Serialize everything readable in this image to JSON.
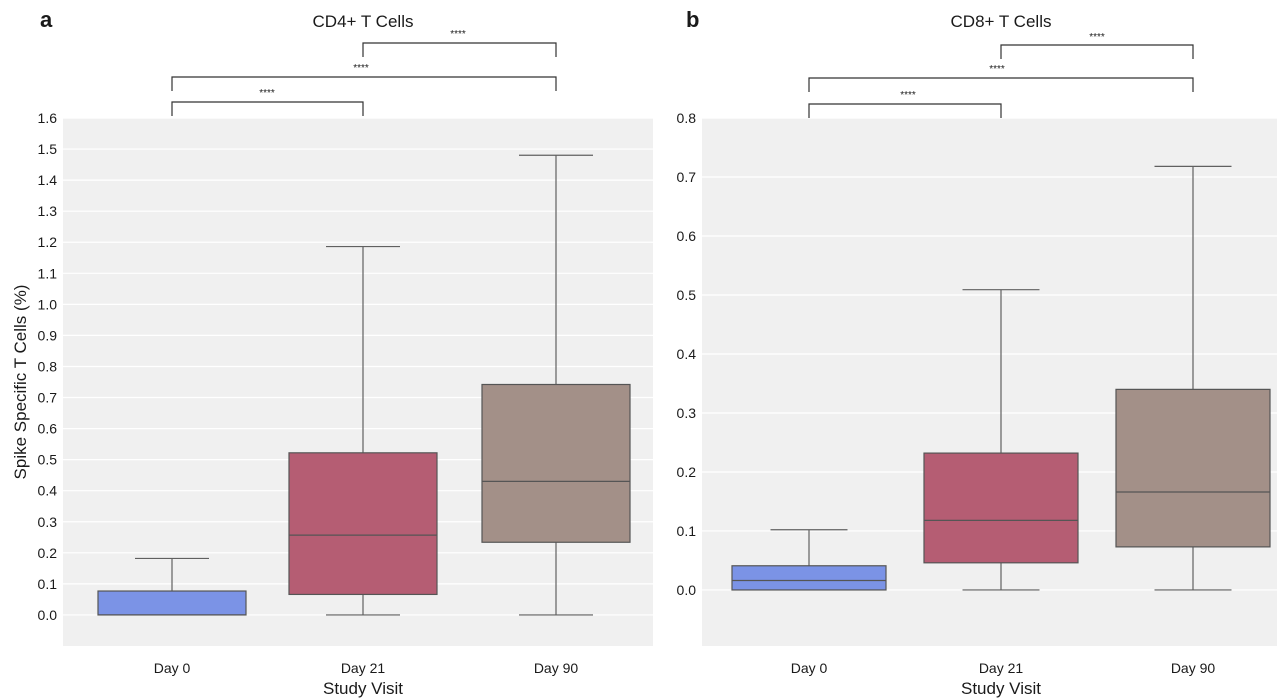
{
  "chart_data": [
    {
      "type": "box",
      "panel_label": "a",
      "title": "CD4+ T Cells",
      "xlabel": "Study Visit",
      "ylabel": "Spike Specific T Cells (%)",
      "ylim": [
        -0.1,
        1.6
      ],
      "yticks": [
        "0.0",
        "0.1",
        "0.2",
        "0.3",
        "0.4",
        "0.5",
        "0.6",
        "0.7",
        "0.8",
        "0.9",
        "1.0",
        "1.1",
        "1.2",
        "1.3",
        "1.4",
        "1.5",
        "1.6"
      ],
      "grid": true,
      "categories": [
        "Day 0",
        "Day 21",
        "Day 90"
      ],
      "boxes": [
        {
          "category": "Day 0",
          "min": 0.0,
          "q1": 0.0,
          "median": 0.0,
          "q3": 0.077,
          "max": 0.182,
          "color": "#7b93e6"
        },
        {
          "category": "Day 21",
          "min": 0.0,
          "q1": 0.066,
          "median": 0.257,
          "q3": 0.522,
          "max": 1.186,
          "color": "#b55d73"
        },
        {
          "category": "Day 90",
          "min": 0.0,
          "q1": 0.234,
          "median": 0.43,
          "q3": 0.742,
          "max": 1.48,
          "color": "#a39088"
        }
      ],
      "significance": [
        {
          "from": "Day 0",
          "to": "Day 21",
          "label": "****"
        },
        {
          "from": "Day 0",
          "to": "Day 90",
          "label": "****"
        },
        {
          "from": "Day 21",
          "to": "Day 90",
          "label": "****"
        }
      ]
    },
    {
      "type": "box",
      "panel_label": "b",
      "title": "CD8+ T Cells",
      "xlabel": "Study Visit",
      "ylabel": "",
      "ylim": [
        -0.095,
        0.8
      ],
      "yticks": [
        "0.0",
        "0.1",
        "0.2",
        "0.3",
        "0.4",
        "0.5",
        "0.6",
        "0.7",
        "0.8"
      ],
      "grid": true,
      "categories": [
        "Day 0",
        "Day 21",
        "Day 90"
      ],
      "boxes": [
        {
          "category": "Day 0",
          "min": 0.0,
          "q1": 0.0,
          "median": 0.016,
          "q3": 0.041,
          "max": 0.102,
          "color": "#7b93e6"
        },
        {
          "category": "Day 21",
          "min": 0.0,
          "q1": 0.046,
          "median": 0.118,
          "q3": 0.232,
          "max": 0.509,
          "color": "#b55d73"
        },
        {
          "category": "Day 90",
          "min": 0.0,
          "q1": 0.073,
          "median": 0.166,
          "q3": 0.34,
          "max": 0.718,
          "color": "#a39088"
        }
      ],
      "significance": [
        {
          "from": "Day 0",
          "to": "Day 21",
          "label": "****"
        },
        {
          "from": "Day 0",
          "to": "Day 90",
          "label": "****"
        },
        {
          "from": "Day 21",
          "to": "Day 90",
          "label": "****"
        }
      ]
    }
  ]
}
